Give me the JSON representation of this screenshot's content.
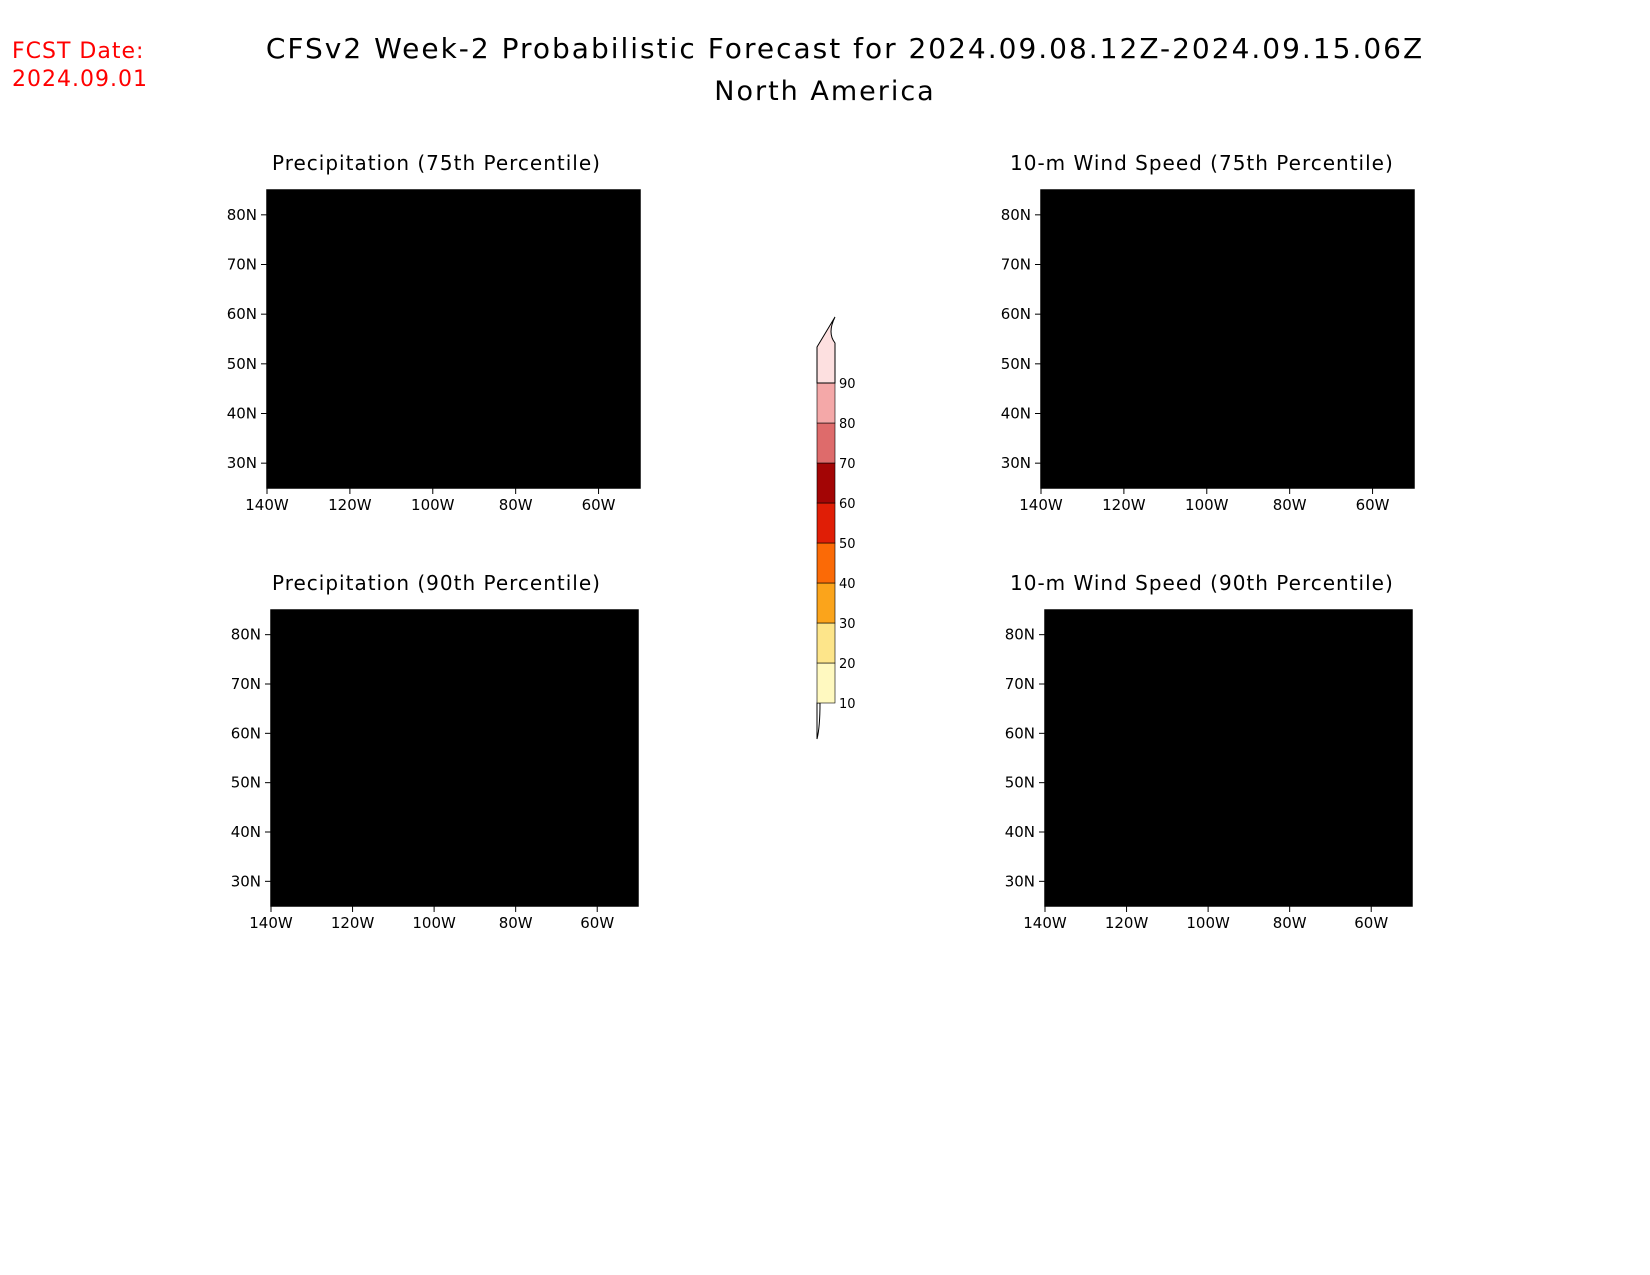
{
  "header": {
    "fcst_label": "FCST Date:",
    "fcst_date": "2024.09.01",
    "title": "CFSv2 Week-2 Probabilistic Forecast for 2024.09.08.12Z-2024.09.15.06Z",
    "subtitle": "North America"
  },
  "panels": [
    {
      "id": "precip75",
      "title": "Precipitation (75th Percentile)"
    },
    {
      "id": "wind75",
      "title": "10-m Wind Speed (75th Percentile)"
    },
    {
      "id": "precip90",
      "title": "Precipitation (90th Percentile)"
    },
    {
      "id": "wind90",
      "title": "10-m Wind Speed (90th Percentile)"
    }
  ],
  "axes": {
    "lat_labels": [
      "80N",
      "70N",
      "60N",
      "50N",
      "40N",
      "30N"
    ],
    "lat_values": [
      80,
      70,
      60,
      50,
      40,
      30
    ],
    "lon_labels": [
      "140W",
      "120W",
      "100W",
      "80W",
      "60W"
    ],
    "lon_values": [
      -140,
      -120,
      -100,
      -80,
      -60
    ],
    "lon_range": [
      -140,
      -50
    ],
    "lat_range": [
      25,
      85
    ]
  },
  "colorbar": {
    "levels": [
      "10",
      "20",
      "30",
      "40",
      "50",
      "60",
      "70",
      "80",
      "90"
    ],
    "colors": [
      "#fff9c0",
      "#fde58a",
      "#fba41b",
      "#fb6a06",
      "#e01e06",
      "#a30505",
      "#de6b6b",
      "#f4a8a8",
      "#fde0e0"
    ]
  },
  "colors": {
    "fcst_text": "#ff0000",
    "coastline": "#000000"
  }
}
